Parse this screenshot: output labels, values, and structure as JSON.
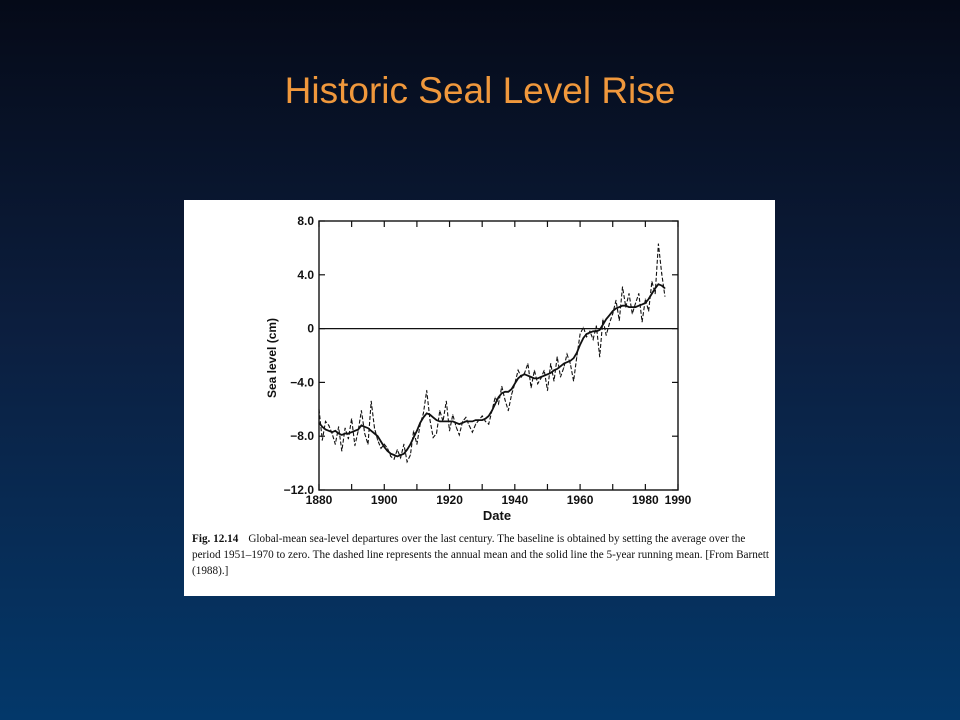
{
  "slide": {
    "title": "Historic Seal Level Rise"
  },
  "figure": {
    "caption": {
      "label": "Fig. 12.14",
      "text": "Global-mean sea-level departures over the last century. The baseline is obtained by setting the average over the period 1951–1970 to zero. The dashed line represents the annual mean and the solid line the 5-year running mean. [From Barnett (1988).]"
    }
  },
  "chart_data": {
    "type": "line",
    "xlabel": "Date",
    "ylabel": "Sea level (cm)",
    "xlim": [
      1880,
      1990
    ],
    "ylim": [
      -12.0,
      8.0
    ],
    "x_ticks": [
      1880,
      1900,
      1920,
      1940,
      1960,
      1980,
      1990
    ],
    "y_ticks": [
      8.0,
      4.0,
      0,
      -4.0,
      -8.0,
      -12.0
    ],
    "x_tick_labels": [
      "1880",
      "1900",
      "1920",
      "1940",
      "1960",
      "1980",
      "1990"
    ],
    "y_tick_labels": [
      "8.0",
      "4.0",
      "0",
      "−4.0",
      "−8.0",
      "−12.0"
    ],
    "baseline": 0,
    "grid": false,
    "series": [
      {
        "style": "dashed",
        "x": [
          1880,
          1881,
          1882,
          1883,
          1884,
          1885,
          1886,
          1887,
          1888,
          1889,
          1890,
          1891,
          1892,
          1893,
          1894,
          1895,
          1896,
          1897,
          1898,
          1899,
          1900,
          1901,
          1902,
          1903,
          1904,
          1905,
          1906,
          1907,
          1908,
          1909,
          1910,
          1911,
          1912,
          1913,
          1914,
          1915,
          1916,
          1917,
          1918,
          1919,
          1920,
          1921,
          1922,
          1923,
          1924,
          1925,
          1926,
          1927,
          1928,
          1929,
          1930,
          1931,
          1932,
          1933,
          1934,
          1935,
          1936,
          1937,
          1938,
          1939,
          1940,
          1941,
          1942,
          1943,
          1944,
          1945,
          1946,
          1947,
          1948,
          1949,
          1950,
          1951,
          1952,
          1953,
          1954,
          1955,
          1956,
          1957,
          1958,
          1959,
          1960,
          1961,
          1962,
          1963,
          1964,
          1965,
          1966,
          1967,
          1968,
          1969,
          1970,
          1971,
          1972,
          1973,
          1974,
          1975,
          1976,
          1977,
          1978,
          1979,
          1980,
          1981,
          1982,
          1983,
          1984,
          1985,
          1986
        ],
        "y": [
          -6.0,
          -8.3,
          -6.9,
          -7.2,
          -7.8,
          -8.6,
          -7.3,
          -9.1,
          -7.4,
          -8.2,
          -6.7,
          -8.7,
          -7.6,
          -6.1,
          -7.8,
          -8.6,
          -5.4,
          -7.4,
          -8.3,
          -8.9,
          -8.6,
          -8.9,
          -9.5,
          -9.7,
          -9.0,
          -9.6,
          -8.6,
          -9.9,
          -9.4,
          -7.6,
          -8.6,
          -7.1,
          -6.3,
          -4.6,
          -6.8,
          -8.1,
          -7.8,
          -6.1,
          -6.9,
          -5.4,
          -7.6,
          -6.4,
          -7.3,
          -7.9,
          -6.9,
          -6.6,
          -7.2,
          -7.7,
          -7.1,
          -6.8,
          -6.5,
          -6.9,
          -7.1,
          -6.1,
          -5.1,
          -5.6,
          -4.3,
          -5.3,
          -6.1,
          -4.9,
          -4.1,
          -3.1,
          -3.6,
          -3.3,
          -2.6,
          -4.4,
          -3.1,
          -4.1,
          -3.7,
          -3.1,
          -4.6,
          -2.6,
          -3.9,
          -2.1,
          -3.6,
          -2.9,
          -1.9,
          -2.6,
          -3.9,
          -2.1,
          -0.4,
          0.1,
          -0.6,
          -0.2,
          -0.8,
          0.2,
          -2.1,
          0.7,
          -0.5,
          0.4,
          1.1,
          2.1,
          0.6,
          3.1,
          1.6,
          2.6,
          1.1,
          1.9,
          2.6,
          0.5,
          2.2,
          1.3,
          3.5,
          2.6,
          6.3,
          4.1,
          2.4
        ],
        "color": "#111111"
      },
      {
        "style": "solid",
        "x": [
          1880,
          1881,
          1882,
          1883,
          1884,
          1885,
          1886,
          1887,
          1888,
          1889,
          1890,
          1891,
          1892,
          1893,
          1894,
          1895,
          1896,
          1897,
          1898,
          1899,
          1900,
          1901,
          1902,
          1903,
          1904,
          1905,
          1906,
          1907,
          1908,
          1909,
          1910,
          1911,
          1912,
          1913,
          1914,
          1915,
          1916,
          1917,
          1918,
          1919,
          1920,
          1921,
          1922,
          1923,
          1924,
          1925,
          1926,
          1927,
          1928,
          1929,
          1930,
          1931,
          1932,
          1933,
          1934,
          1935,
          1936,
          1937,
          1938,
          1939,
          1940,
          1941,
          1942,
          1943,
          1944,
          1945,
          1946,
          1947,
          1948,
          1949,
          1950,
          1951,
          1952,
          1953,
          1954,
          1955,
          1956,
          1957,
          1958,
          1959,
          1960,
          1961,
          1962,
          1963,
          1964,
          1965,
          1966,
          1967,
          1968,
          1969,
          1970,
          1971,
          1972,
          1973,
          1974,
          1975,
          1976,
          1977,
          1978,
          1979,
          1980,
          1981,
          1982,
          1983,
          1984,
          1985,
          1986
        ],
        "y": [
          -7.0,
          -7.3,
          -7.5,
          -7.6,
          -7.7,
          -7.6,
          -7.8,
          -7.9,
          -7.8,
          -7.8,
          -7.7,
          -7.6,
          -7.5,
          -7.2,
          -7.3,
          -7.4,
          -7.6,
          -7.8,
          -8.0,
          -8.4,
          -8.8,
          -9.1,
          -9.3,
          -9.4,
          -9.5,
          -9.4,
          -9.3,
          -9.0,
          -8.6,
          -8.1,
          -7.6,
          -7.0,
          -6.6,
          -6.3,
          -6.4,
          -6.6,
          -6.8,
          -6.9,
          -6.9,
          -6.9,
          -6.9,
          -6.9,
          -7.0,
          -7.1,
          -7.0,
          -6.9,
          -6.9,
          -6.9,
          -6.8,
          -6.8,
          -6.8,
          -6.7,
          -6.5,
          -6.1,
          -5.6,
          -5.1,
          -4.8,
          -4.7,
          -4.7,
          -4.5,
          -4.1,
          -3.7,
          -3.5,
          -3.4,
          -3.5,
          -3.6,
          -3.7,
          -3.7,
          -3.6,
          -3.5,
          -3.4,
          -3.3,
          -3.1,
          -3.0,
          -2.8,
          -2.6,
          -2.5,
          -2.4,
          -2.2,
          -1.8,
          -1.2,
          -0.7,
          -0.4,
          -0.3,
          -0.2,
          -0.2,
          -0.1,
          0.3,
          0.7,
          1.0,
          1.3,
          1.5,
          1.6,
          1.7,
          1.7,
          1.6,
          1.6,
          1.6,
          1.7,
          1.8,
          1.9,
          2.2,
          2.6,
          3.0,
          3.3,
          3.2,
          3.0
        ],
        "color": "#111111"
      }
    ]
  }
}
